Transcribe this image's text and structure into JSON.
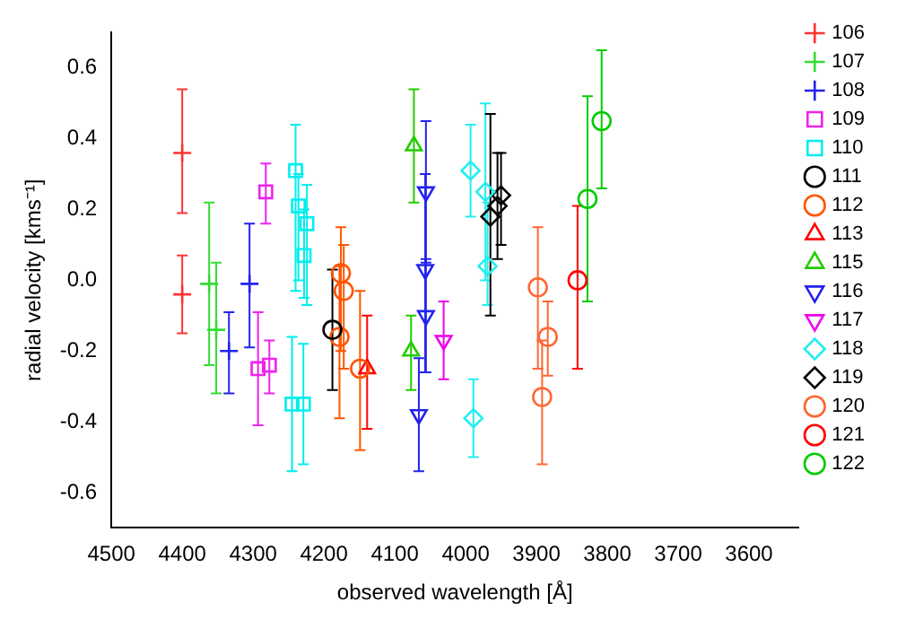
{
  "chart_data": {
    "type": "scatter",
    "xlabel": "observed wavelength [Å]",
    "ylabel": "radial velocity [kms⁻¹]",
    "xlim": [
      4500,
      3530
    ],
    "xticks": [
      4500,
      4400,
      4300,
      4200,
      4100,
      4000,
      3900,
      3800,
      3700,
      3600
    ],
    "ylim": [
      -0.7,
      0.7
    ],
    "yticks": [
      -0.6,
      -0.4,
      -0.2,
      {
        "value": 0,
        "label": "0.0"
      },
      0.2,
      0.4,
      0.6
    ],
    "grid": false,
    "legend": "top right",
    "series": [
      {
        "name": "106",
        "color": "#ff3333",
        "marker": "cross",
        "x": [
          4400,
          4400
        ],
        "values": [
          0.36,
          -0.04
        ],
        "errors": [
          [
            0.19,
            0.54
          ],
          [
            -0.15,
            0.07
          ]
        ]
      },
      {
        "name": "107",
        "color": "#33dd33",
        "marker": "cross",
        "x": [
          4362,
          4352
        ],
        "values": [
          -0.01,
          -0.14
        ],
        "errors": [
          [
            -0.24,
            0.22
          ],
          [
            -0.32,
            0.05
          ]
        ]
      },
      {
        "name": "108",
        "color": "#2222ee",
        "marker": "cross",
        "x": [
          4334,
          4305
        ],
        "values": [
          -0.2,
          -0.01
        ],
        "errors": [
          [
            -0.32,
            -0.09
          ],
          [
            -0.19,
            0.16
          ]
        ]
      },
      {
        "name": "109",
        "color": "#ee22ee",
        "marker": "square",
        "x": [
          4282,
          4293,
          4277
        ],
        "values": [
          0.25,
          -0.25,
          -0.24
        ],
        "errors": [
          [
            0.16,
            0.33
          ],
          [
            -0.41,
            -0.09
          ],
          [
            -0.32,
            -0.17
          ]
        ]
      },
      {
        "name": "110",
        "color": "#00eeee",
        "marker": "square",
        "x": [
          4240,
          4236,
          4224,
          4228,
          4245,
          4229
        ],
        "values": [
          0.31,
          0.21,
          0.16,
          0.07,
          -0.35,
          -0.35
        ],
        "errors": [
          [
            -0.03,
            0.44
          ],
          [
            0.0,
            0.3
          ],
          [
            -0.07,
            0.27
          ],
          [
            -0.05,
            0.2
          ],
          [
            -0.54,
            -0.16
          ],
          [
            -0.52,
            -0.18
          ]
        ]
      },
      {
        "name": "111",
        "color": "#000000",
        "marker": "circle",
        "x": [
          4188
        ],
        "values": [
          -0.14
        ],
        "errors": [
          [
            -0.31,
            0.03
          ]
        ]
      },
      {
        "name": "112",
        "color": "#ff5500",
        "marker": "circle",
        "x": [
          4176,
          4172,
          4178,
          4149
        ],
        "values": [
          0.02,
          -0.03,
          -0.16,
          -0.25
        ],
        "errors": [
          [
            -0.2,
            0.15
          ],
          [
            -0.25,
            0.1
          ],
          [
            -0.39,
            0.04
          ],
          [
            -0.48,
            -0.03
          ]
        ]
      },
      {
        "name": "113",
        "color": "#ff0000",
        "marker": "triangle",
        "x": [
          4139
        ],
        "values": [
          -0.25
        ],
        "errors": [
          [
            -0.42,
            -0.1
          ]
        ]
      },
      {
        "name": "115",
        "color": "#22cc00",
        "marker": "triangle",
        "x": [
          4073,
          4077
        ],
        "values": [
          0.38,
          -0.2
        ],
        "errors": [
          [
            0.22,
            0.54
          ],
          [
            -0.31,
            -0.1
          ]
        ]
      },
      {
        "name": "116",
        "color": "#2222ee",
        "marker": "triangle-down",
        "x": [
          4056,
          4057,
          4056,
          4066
        ],
        "values": [
          0.25,
          0.03,
          -0.1,
          -0.38
        ],
        "errors": [
          [
            0.05,
            0.45
          ],
          [
            -0.26,
            0.3
          ],
          [
            -0.26,
            0.06
          ],
          [
            -0.54,
            -0.22
          ]
        ]
      },
      {
        "name": "117",
        "color": "#ee00ee",
        "marker": "triangle-down",
        "x": [
          4031
        ],
        "values": [
          -0.17
        ],
        "errors": [
          [
            -0.28,
            -0.06
          ]
        ]
      },
      {
        "name": "118",
        "color": "#22eeee",
        "marker": "diamond",
        "x": [
          3993,
          3972,
          3969,
          3989
        ],
        "values": [
          0.31,
          0.25,
          0.04,
          -0.39
        ],
        "errors": [
          [
            0.18,
            0.44
          ],
          [
            0.0,
            0.5
          ],
          [
            -0.07,
            0.22
          ],
          [
            -0.5,
            -0.28
          ]
        ]
      },
      {
        "name": "119",
        "color": "#000000",
        "marker": "diamond",
        "x": [
          3965,
          3955,
          3950
        ],
        "values": [
          0.18,
          0.21,
          0.24
        ],
        "errors": [
          [
            -0.1,
            0.47
          ],
          [
            0.06,
            0.36
          ],
          [
            0.1,
            0.36
          ]
        ]
      },
      {
        "name": "120",
        "color": "#ff6633",
        "marker": "circle",
        "x": [
          3898,
          3884,
          3892
        ],
        "values": [
          -0.02,
          -0.16,
          -0.33
        ],
        "errors": [
          [
            -0.25,
            0.15
          ],
          [
            -0.27,
            -0.06
          ],
          [
            -0.52,
            -0.17
          ]
        ]
      },
      {
        "name": "121",
        "color": "#ff0000",
        "marker": "circle",
        "x": [
          3842
        ],
        "values": [
          0.0
        ],
        "errors": [
          [
            -0.25,
            0.21
          ]
        ]
      },
      {
        "name": "122",
        "color": "#00cc00",
        "marker": "circle",
        "x": [
          3828,
          3808
        ],
        "values": [
          0.23,
          0.45
        ],
        "errors": [
          [
            -0.06,
            0.52
          ],
          [
            0.26,
            0.65
          ]
        ]
      }
    ]
  }
}
